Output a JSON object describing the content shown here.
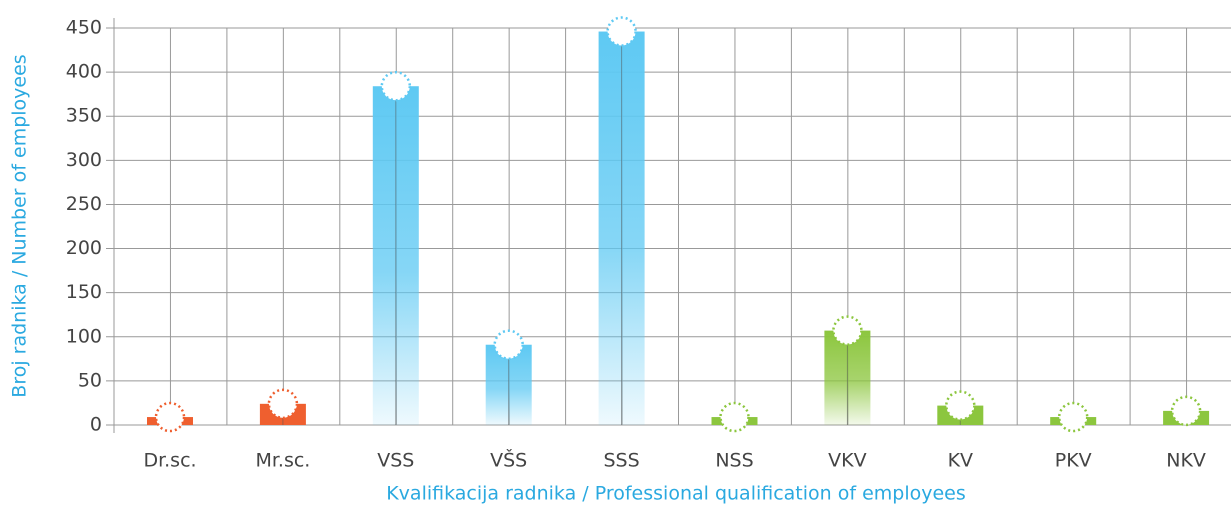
{
  "chart_data": {
    "type": "bar",
    "x_label": "Kvalifikacija radnika / Professional qualification of employees",
    "y_label": "Broj radnika / Number of employees",
    "categories": [
      "Dr.sc.",
      "Mr.sc.",
      "VSS",
      "VŠS",
      "SSS",
      "NSS",
      "VKV",
      "KV",
      "PKV",
      "NKV"
    ],
    "values": [
      9,
      24,
      384,
      91,
      446,
      9,
      107,
      22,
      9,
      16
    ],
    "colors": [
      "#ef5f2f",
      "#ef5f2f",
      "#5ec9f3",
      "#5ec9f3",
      "#5ec9f3",
      "#8cc63e",
      "#8cc63e",
      "#8cc63e",
      "#8cc63e",
      "#8cc63e"
    ],
    "ylim": [
      0,
      450
    ],
    "yticks": [
      0,
      50,
      100,
      150,
      200,
      250,
      300,
      350,
      400,
      450
    ],
    "grid": true
  }
}
